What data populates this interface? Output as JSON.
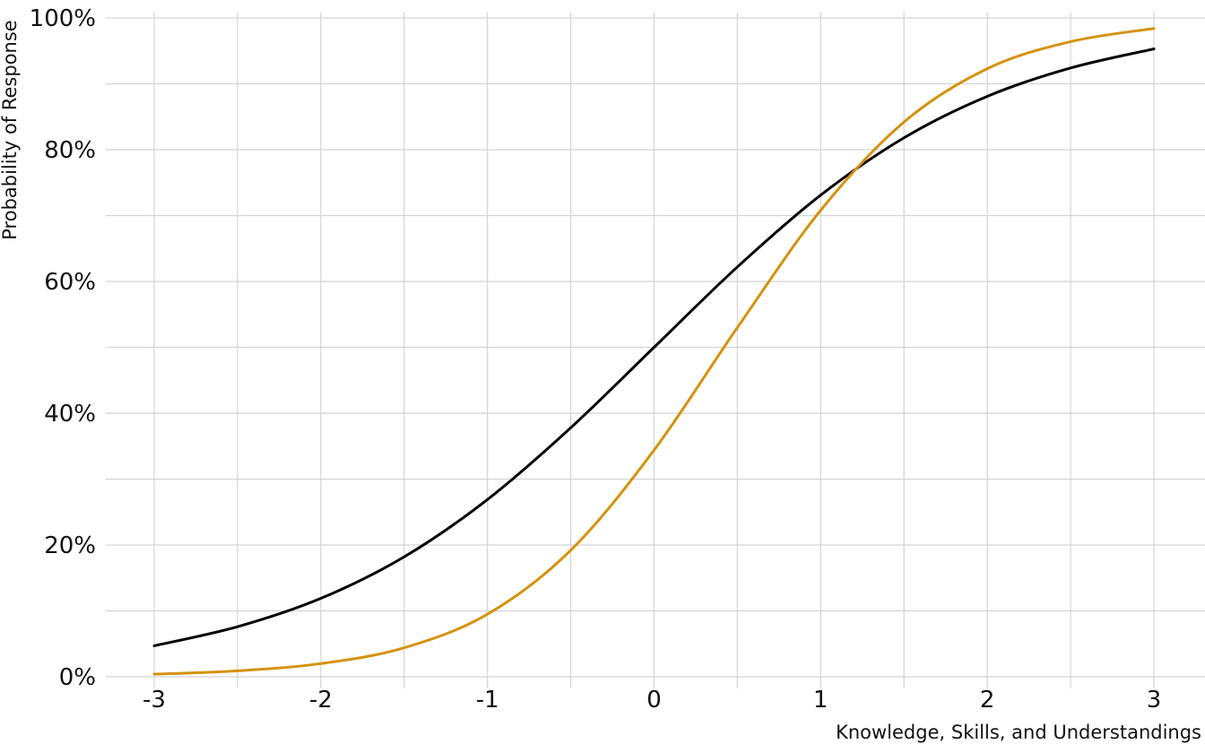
{
  "chart_data": {
    "type": "line",
    "title": "",
    "xlabel": "Knowledge, Skills, and Understandings",
    "ylabel": "Probability of Response",
    "xlim": [
      -3,
      3
    ],
    "ylim": [
      0,
      100
    ],
    "x_ticks": [
      "-3",
      "-2",
      "-1",
      "0",
      "1",
      "2",
      "3"
    ],
    "y_ticks": [
      "0%",
      "20%",
      "40%",
      "60%",
      "80%",
      "100%"
    ],
    "grid": true,
    "x": [
      -3,
      -2.5,
      -2,
      -1.5,
      -1,
      -0.5,
      0,
      0.5,
      1,
      1.5,
      2,
      2.5,
      3
    ],
    "series": [
      {
        "color": "#000000",
        "values": [
          4.7,
          7.6,
          11.9,
          18.2,
          26.9,
          37.8,
          50.0,
          62.2,
          73.1,
          81.8,
          88.1,
          92.4,
          95.3
        ]
      },
      {
        "color": "#d4920e",
        "values": [
          0.4,
          0.9,
          2.0,
          4.4,
          9.5,
          19.2,
          34.4,
          53.0,
          70.8,
          84.2,
          92.3,
          96.4,
          98.4
        ]
      }
    ]
  }
}
